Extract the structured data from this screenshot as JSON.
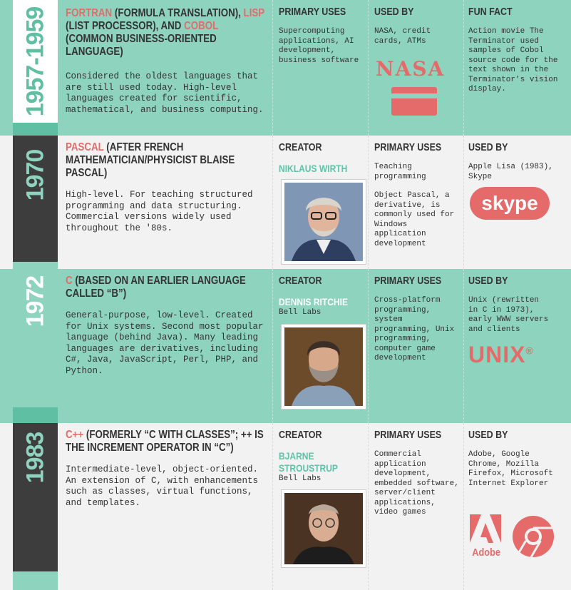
{
  "rows": [
    {
      "year": "1957-1959",
      "title_parts": [
        {
          "t": "FORTRAN",
          "hl": true
        },
        {
          "t": " (FORMULA TRANSLATION), ",
          "hl": false
        },
        {
          "t": "LISP",
          "hl": true
        },
        {
          "t": " (LIST PROCESSOR), AND ",
          "hl": false
        },
        {
          "t": "COBOL",
          "hl": true
        },
        {
          "t": " (COMMON BUSINESS-ORIENTED LANGUAGE)",
          "hl": false
        }
      ],
      "description": "Considered the oldest languages that are still used today. High-level languages created for scientific, mathematical, and business computing.",
      "col2_header": "PRIMARY USES",
      "col2_text": "Supercomputing applications, AI development, business software",
      "col3_header": "USED BY",
      "col3_text": "NASA, credit cards, ATMs",
      "col3_logo": "NASA",
      "col4_header": "FUN FACT",
      "col4_text": "Action movie The Terminator used samples of Cobol source code for the text shown in the Terminator's vision display."
    },
    {
      "year": "1970",
      "title_parts": [
        {
          "t": "PASCAL",
          "hl": true
        },
        {
          "t": " (AFTER FRENCH MATHEMATICIAN/PHYSICIST BLAISE PASCAL)",
          "hl": false
        }
      ],
      "description": "High-level. For teaching structured programming and data structuring. Commercial versions widely used throughout the '80s.",
      "creator_header": "CREATOR",
      "creator_name": "NIKLAUS WIRTH",
      "creator_org": "",
      "uses_header": "PRIMARY USES",
      "uses_text_1": "Teaching programming",
      "uses_text_2": "Object Pascal, a derivative, is commonly used for Windows application development",
      "usedby_header": "USED BY",
      "usedby_text": "Apple Lisa (1983), Skype",
      "usedby_logo": "skype"
    },
    {
      "year": "1972",
      "title_parts": [
        {
          "t": "C",
          "hl": true
        },
        {
          "t": " (BASED ON AN EARLIER LANGUAGE CALLED “B”)",
          "hl": false
        }
      ],
      "description": "General-purpose, low-level. Created for Unix systems. Second most popular language (behind Java). Many leading languages are derivatives, including C#, Java, JavaScript, Perl, PHP, and Python.",
      "creator_header": "CREATOR",
      "creator_name": "DENNIS RITCHIE",
      "creator_org": "Bell Labs",
      "uses_header": "PRIMARY USES",
      "uses_text_1": "Cross-platform programming, system programming, Unix programming, computer game development",
      "uses_text_2": "",
      "usedby_header": "USED BY",
      "usedby_text": "Unix (rewritten in C in 1973), early WWW servers and clients",
      "usedby_logo": "UNIX",
      "usedby_logo_mark": "®"
    },
    {
      "year": "1983",
      "title_parts": [
        {
          "t": "C++",
          "hl": true
        },
        {
          "t": " (FORMERLY “C WITH CLASSES”; ++ IS THE INCREMENT OPERATOR IN “C”)",
          "hl": false
        }
      ],
      "description": "Intermediate-level, object-oriented. An extension of C, with enhancements such as classes, virtual functions, and templates.",
      "creator_header": "CREATOR",
      "creator_name": "BJARNE STROUSTRUP",
      "creator_org": "Bell Labs",
      "uses_header": "PRIMARY USES",
      "uses_text_1": "Commercial application development, embedded software, server/client applications, video games",
      "uses_text_2": "",
      "usedby_header": "USED BY",
      "usedby_text": "Adobe, Google Chrome, Mozilla Firefox, Microsoft Internet Explorer",
      "usedby_logo": "Adobe"
    }
  ],
  "colors": {
    "teal": "#8ed3be",
    "dark": "#3d3d3d",
    "coral": "#e56a6a",
    "paper": "#f2f2f2"
  }
}
